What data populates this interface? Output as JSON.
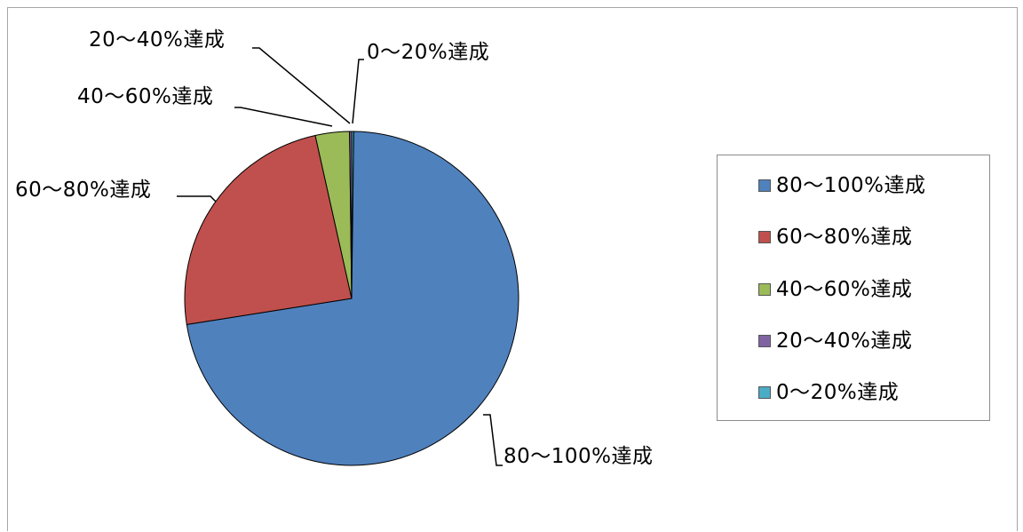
{
  "chart_data": {
    "type": "pie",
    "slices": [
      {
        "label": "0〜20%達成",
        "value": 0.2,
        "color": "#4bacc6"
      },
      {
        "label": "80〜100%達成",
        "value": 72.3,
        "color": "#4f81bd"
      },
      {
        "label": "60〜80%達成",
        "value": 24.0,
        "color": "#c0504d"
      },
      {
        "label": "40〜60%達成",
        "value": 3.3,
        "color": "#9bbb59"
      },
      {
        "label": "20〜40%達成",
        "value": 0.2,
        "color": "#8064a2"
      }
    ],
    "start_angle_deg": 0,
    "direction": "clockwise",
    "legend": {
      "position": "right",
      "entries": [
        {
          "label": "80〜100%達成",
          "color": "#4f81bd"
        },
        {
          "label": "60〜80%達成",
          "color": "#c0504d"
        },
        {
          "label": "40〜60%達成",
          "color": "#9bbb59"
        },
        {
          "label": "20〜40%達成",
          "color": "#8064a2"
        },
        {
          "label": "0〜20%達成",
          "color": "#4bacc6"
        }
      ]
    }
  }
}
